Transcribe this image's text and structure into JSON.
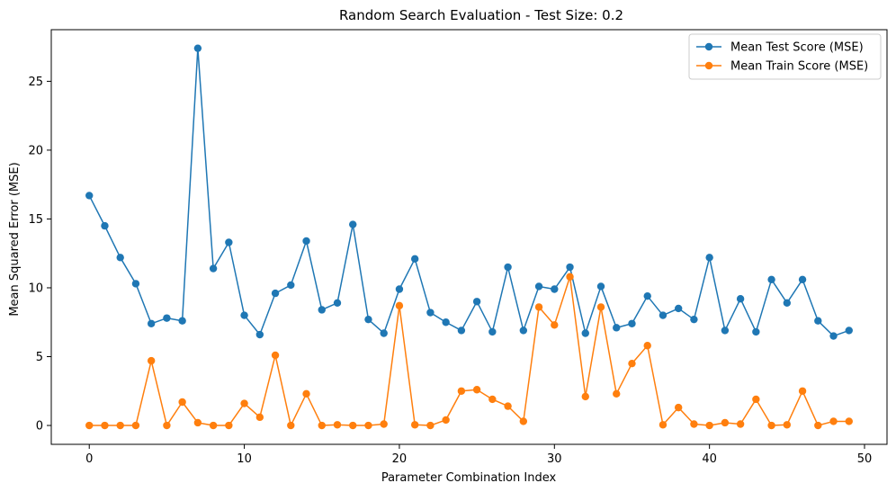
{
  "chart_data": {
    "type": "line",
    "title": "Random Search Evaluation - Test Size: 0.2",
    "xlabel": "Parameter Combination Index",
    "ylabel": "Mean Squared Error (MSE)",
    "xlim": [
      -2.45,
      51.45
    ],
    "ylim": [
      -1.37,
      28.75
    ],
    "xticks": [
      0,
      10,
      20,
      30,
      40,
      50
    ],
    "yticks": [
      0,
      5,
      10,
      15,
      20,
      25
    ],
    "grid": false,
    "legend_position": "top-right",
    "series": [
      {
        "name": "Mean Test Score (MSE)",
        "color": "#1f77b4",
        "marker": "circle",
        "x": [
          0,
          1,
          2,
          3,
          4,
          5,
          6,
          7,
          8,
          9,
          10,
          11,
          12,
          13,
          14,
          15,
          16,
          17,
          18,
          19,
          20,
          21,
          22,
          23,
          24,
          25,
          26,
          27,
          28,
          29,
          30,
          31,
          32,
          33,
          34,
          35,
          36,
          37,
          38,
          39,
          40,
          41,
          42,
          43,
          44,
          45,
          46,
          47,
          48,
          49
        ],
        "values": [
          16.7,
          14.5,
          12.2,
          10.3,
          7.4,
          7.8,
          7.6,
          27.4,
          11.4,
          13.3,
          8.0,
          6.6,
          9.6,
          10.2,
          13.4,
          8.4,
          8.9,
          14.6,
          7.7,
          6.7,
          9.9,
          12.1,
          8.2,
          7.5,
          6.9,
          9.0,
          6.8,
          11.5,
          6.9,
          10.1,
          9.9,
          11.5,
          6.7,
          10.1,
          7.1,
          7.4,
          9.4,
          8.0,
          8.5,
          7.7,
          12.2,
          6.9,
          9.2,
          6.8,
          10.6,
          8.9,
          10.6,
          7.6,
          6.5,
          6.9
        ]
      },
      {
        "name": "Mean Train Score (MSE)",
        "color": "#ff7f0e",
        "marker": "circle",
        "x": [
          0,
          1,
          2,
          3,
          4,
          5,
          6,
          7,
          8,
          9,
          10,
          11,
          12,
          13,
          14,
          15,
          16,
          17,
          18,
          19,
          20,
          21,
          22,
          23,
          24,
          25,
          26,
          27,
          28,
          29,
          30,
          31,
          32,
          33,
          34,
          35,
          36,
          37,
          38,
          39,
          40,
          41,
          42,
          43,
          44,
          45,
          46,
          47,
          48,
          49
        ],
        "values": [
          0.0,
          0.0,
          0.0,
          0.0,
          4.7,
          0.0,
          1.7,
          0.2,
          0.0,
          0.0,
          1.6,
          0.6,
          5.1,
          0.0,
          2.3,
          0.0,
          0.05,
          0.0,
          0.0,
          0.1,
          8.7,
          0.05,
          0.0,
          0.4,
          2.5,
          2.6,
          1.9,
          1.4,
          0.3,
          8.6,
          7.3,
          10.8,
          2.1,
          8.6,
          2.3,
          4.5,
          5.8,
          0.05,
          1.3,
          0.1,
          0.0,
          0.2,
          0.1,
          1.9,
          0.0,
          0.05,
          2.5,
          0.0,
          0.3,
          0.3
        ]
      }
    ]
  }
}
